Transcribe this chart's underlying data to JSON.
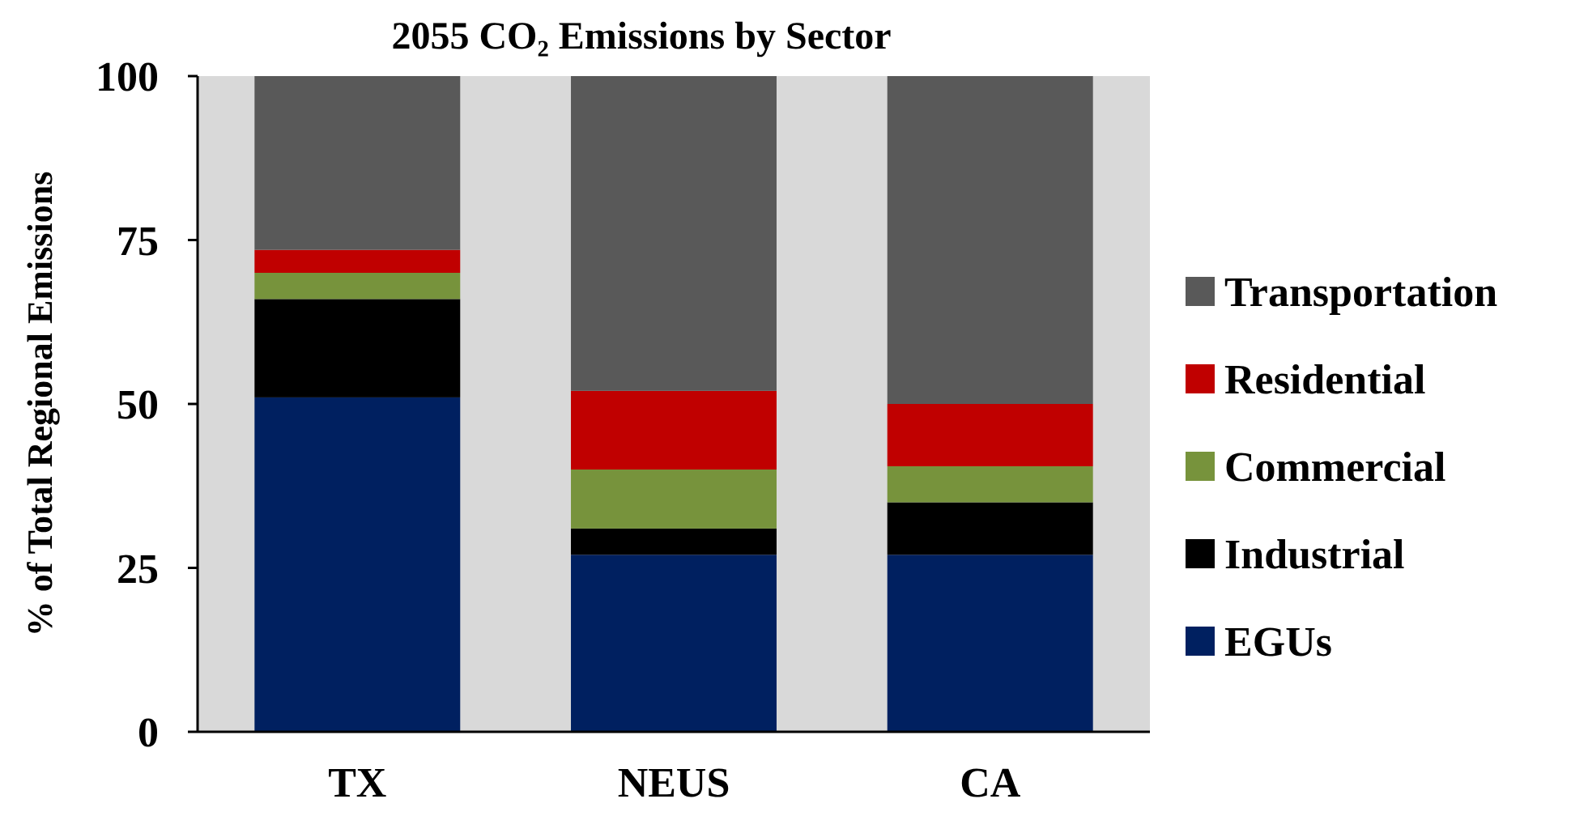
{
  "chart_data": {
    "type": "bar",
    "title": "2055 CO₂ Emissions by Sector",
    "ylabel": "% of Total Regional Emissions",
    "categories": [
      "TX",
      "NEUS",
      "CA"
    ],
    "stacked": true,
    "legend": "right",
    "grid": false,
    "ylim": [
      0,
      100
    ],
    "yticks": [
      0,
      25,
      50,
      75,
      100
    ],
    "series": [
      {
        "name": "EGUs",
        "color": "#002060",
        "values": [
          51,
          27,
          27
        ]
      },
      {
        "name": "Industrial",
        "color": "#000000",
        "values": [
          15,
          4,
          8
        ]
      },
      {
        "name": "Commercial",
        "color": "#77933c",
        "values": [
          4,
          9,
          5.5
        ]
      },
      {
        "name": "Residential",
        "color": "#c00000",
        "values": [
          3.5,
          12,
          9.5
        ]
      },
      {
        "name": "Transportation",
        "color": "#595959",
        "values": [
          26.5,
          48,
          50
        ]
      }
    ]
  }
}
